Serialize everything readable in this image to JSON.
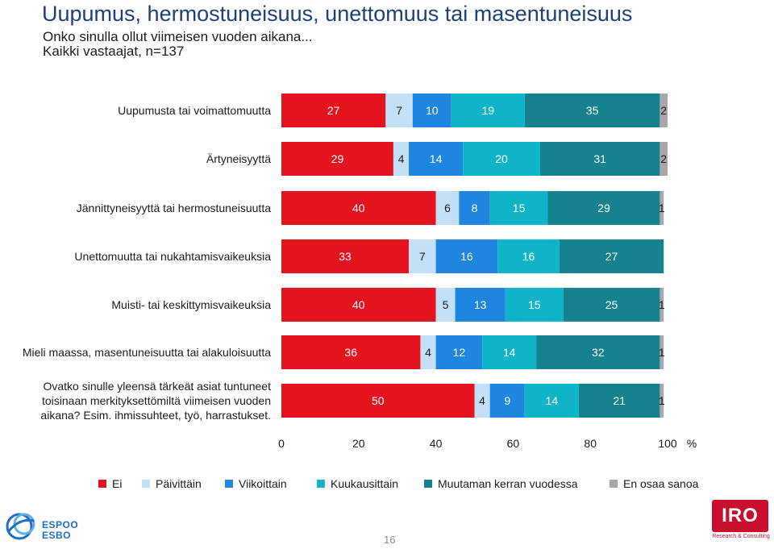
{
  "header": {
    "title": "Uupumus, hermostuneisuus, unettomuus tai masentuneisuus",
    "subtitle1": "Onko sinulla ollut viimeisen vuoden aikana...",
    "subtitle2": "Kaikki vastaajat, n=137"
  },
  "chart_data": {
    "type": "bar",
    "orientation": "horizontal",
    "stacked": true,
    "xlim": [
      0,
      100
    ],
    "xticks": [
      "0",
      "20",
      "40",
      "60",
      "80",
      "100"
    ],
    "xunit": "%",
    "categories": [
      "Uupumusta tai voimattomuutta",
      "Ärtyneisyyttä",
      "Jännittyneisyyttä tai hermostuneisuutta",
      "Unettomuutta tai nukahtamisvaikeuksia",
      "Muisti- tai keskittymisvaikeuksia",
      "Mieli maassa, masentuneisuutta tai alakuloisuutta",
      "Ovatko sinulle yleensä tärkeät asiat tuntuneet toisinaan merkityksettömiltä viimeisen vuoden aikana? Esim. ihmissuhteet, työ, harrastukset."
    ],
    "category_lines": [
      [
        "Uupumusta tai voimattomuutta"
      ],
      [
        "Ärtyneisyyttä"
      ],
      [
        "Jännittyneisyyttä tai hermostuneisuutta"
      ],
      [
        "Unettomuutta tai nukahtamisvaikeuksia"
      ],
      [
        "Muisti- tai keskittymisvaikeuksia"
      ],
      [
        "Mieli maassa, masentuneisuutta tai alakuloisuutta"
      ],
      [
        "Ovatko sinulle yleensä tärkeät asiat tuntuneet",
        "toisinaan merkityksettömiltä viimeisen vuoden",
        "aikana? Esim. ihmissuhteet, työ, harrastukset."
      ]
    ],
    "series": [
      {
        "name": "Ei",
        "color": "#e3141e",
        "values": [
          27,
          29,
          40,
          33,
          40,
          36,
          50
        ]
      },
      {
        "name": "Päivittäin",
        "color": "#c3e0f6",
        "values": [
          7,
          4,
          6,
          7,
          5,
          4,
          4
        ]
      },
      {
        "name": "Viikoittain",
        "color": "#1e86de",
        "values": [
          10,
          14,
          8,
          16,
          13,
          12,
          9
        ]
      },
      {
        "name": "Kuukausittain",
        "color": "#10b4c8",
        "values": [
          19,
          20,
          15,
          16,
          15,
          14,
          14
        ]
      },
      {
        "name": "Muutaman kerran vuodessa",
        "color": "#16828e",
        "values": [
          35,
          31,
          29,
          27,
          25,
          32,
          21
        ]
      },
      {
        "name": "En osaa sanoa",
        "color": "#a8a8a8",
        "values": [
          2,
          2,
          1,
          0,
          1,
          1,
          1
        ]
      }
    ],
    "grid": false,
    "legend_position": "bottom"
  },
  "footer": {
    "espoo_line1": "ESPOO",
    "espoo_line2": "ESBO",
    "page_number": "16",
    "iro_text": "IRO",
    "iro_subtext": "Research & Consulting"
  }
}
